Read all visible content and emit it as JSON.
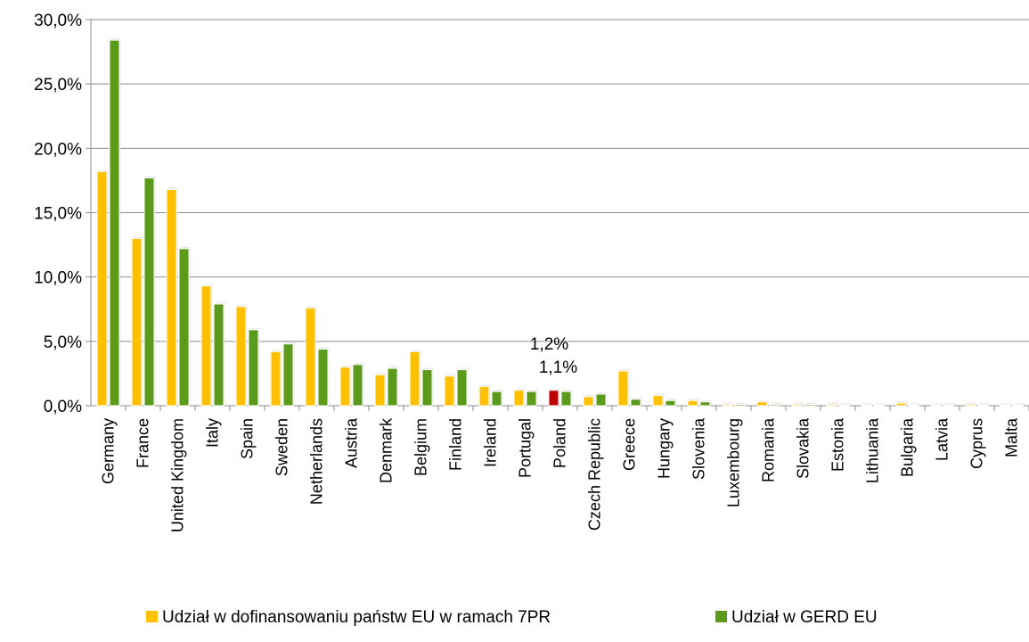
{
  "chart_data": {
    "type": "bar",
    "categories": [
      "Germany",
      "France",
      "United Kingdom",
      "Italy",
      "Spain",
      "Sweden",
      "Netherlands",
      "Austria",
      "Denmark",
      "Belgium",
      "Finland",
      "Ireland",
      "Portugal",
      "Poland",
      "Czech Republic",
      "Greece",
      "Hungary",
      "Slovenia",
      "Luxembourg",
      "Romania",
      "Slovakia",
      "Estonia",
      "Lithuania",
      "Bulgaria",
      "Latvia",
      "Cyprus",
      "Malta"
    ],
    "series": [
      {
        "name": "Udział w dofinansowaniu państw EU w ramach 7PR",
        "color": "#FFC000",
        "values": [
          18.2,
          13.0,
          16.8,
          9.3,
          7.7,
          4.2,
          7.6,
          3.0,
          2.4,
          4.2,
          2.3,
          1.5,
          1.2,
          1.2,
          0.7,
          2.7,
          0.8,
          0.4,
          0.1,
          0.3,
          0.1,
          0.1,
          0.05,
          0.2,
          0.05,
          0.1,
          0.05
        ]
      },
      {
        "name": "Udział w GERD EU",
        "color": "#5B9A1A",
        "values": [
          28.4,
          17.7,
          12.2,
          7.9,
          5.9,
          4.8,
          4.4,
          3.2,
          2.9,
          2.8,
          2.8,
          1.1,
          1.1,
          1.1,
          0.9,
          0.5,
          0.4,
          0.3,
          0.1,
          0.1,
          0.1,
          0.05,
          0.05,
          0.05,
          0.05,
          0.05,
          0.05
        ]
      }
    ],
    "highlight": {
      "category": "Poland",
      "color_series_1": "#C00000"
    },
    "annotations": [
      "1,2%",
      "1,1%"
    ],
    "yticks": [
      "0,0%",
      "5,0%",
      "10,0%",
      "15,0%",
      "20,0%",
      "25,0%",
      "30,0%"
    ],
    "ylim": [
      0,
      30
    ],
    "grid": true,
    "legend_position": "bottom"
  }
}
